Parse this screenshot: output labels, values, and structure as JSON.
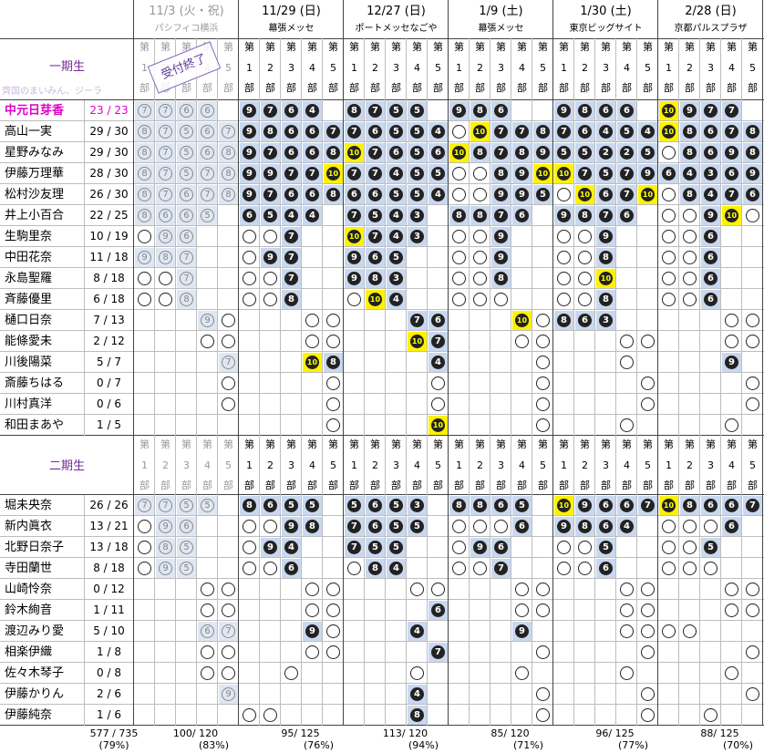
{
  "groups": [
    "一期生",
    "二期生"
  ],
  "part_label": "第",
  "part_numbers": [
    "1",
    "2",
    "3",
    "4",
    "5"
  ],
  "part_suffix": "部",
  "watermark": "齊国のまいみん、ジーラ",
  "stamp": "受付終了",
  "events": [
    {
      "date": "11/3 (火・祝)",
      "venue": "パシフィコ横浜",
      "closed": true,
      "footer": "100/ 120",
      "footer_pct": "(83%)"
    },
    {
      "date": "11/29 (日)",
      "venue": "幕張メッセ",
      "closed": false,
      "footer": "95/ 125",
      "footer_pct": "(76%)"
    },
    {
      "date": "12/27 (日)",
      "venue": "ポートメッセなごや",
      "closed": false,
      "footer": "113/ 120",
      "footer_pct": "(94%)"
    },
    {
      "date": "1/9 (土)",
      "venue": "幕張メッセ",
      "closed": false,
      "footer": "85/ 120",
      "footer_pct": "(71%)"
    },
    {
      "date": "1/30 (土)",
      "venue": "東京ビッグサイト",
      "closed": false,
      "footer": "96/ 125",
      "footer_pct": "(77%)"
    },
    {
      "date": "2/28 (日)",
      "venue": "京都パルスプラザ",
      "closed": false,
      "footer": "88/ 125",
      "footer_pct": "(70%)"
    }
  ],
  "total": {
    "value": "577 / 735",
    "pct": "(79%)"
  },
  "legend_note": "cells: number = remaining slots shown in circled digit; o = empty circle; x = blank",
  "members_gen1": [
    {
      "name": "中元日芽香",
      "ratio": "23 / 23",
      "highlight": true,
      "cells": [
        "7",
        "7",
        "6",
        "6",
        "",
        "9",
        "7",
        "6",
        "4",
        "",
        "8",
        "7",
        "5",
        "5",
        "",
        "9",
        "8",
        "6",
        "",
        "",
        "9",
        "8",
        "6",
        "6",
        "",
        "10",
        "9",
        "7",
        "7",
        ""
      ]
    },
    {
      "name": "高山一実",
      "ratio": "29 / 30",
      "cells": [
        "8",
        "7",
        "5",
        "6",
        "7",
        "9",
        "8",
        "6",
        "6",
        "7",
        "7",
        "6",
        "5",
        "5",
        "4",
        "o",
        "10",
        "7",
        "7",
        "8",
        "7",
        "6",
        "4",
        "5",
        "4",
        "10",
        "8",
        "6",
        "7",
        "8"
      ]
    },
    {
      "name": "星野みなみ",
      "ratio": "29 / 30",
      "cells": [
        "8",
        "7",
        "5",
        "6",
        "8",
        "9",
        "7",
        "6",
        "6",
        "8",
        "10",
        "7",
        "6",
        "5",
        "6",
        "10",
        "8",
        "7",
        "8",
        "9",
        "5",
        "5",
        "2",
        "2",
        "5",
        "o",
        "8",
        "6",
        "9",
        "8"
      ]
    },
    {
      "name": "伊藤万理華",
      "ratio": "28 / 30",
      "cells": [
        "8",
        "7",
        "5",
        "7",
        "8",
        "9",
        "9",
        "7",
        "7",
        "10",
        "7",
        "7",
        "4",
        "5",
        "5",
        "o",
        "o",
        "8",
        "9",
        "10",
        "10",
        "7",
        "5",
        "7",
        "9",
        "6",
        "4",
        "3",
        "6",
        "9"
      ]
    },
    {
      "name": "松村沙友理",
      "ratio": "26 / 30",
      "cells": [
        "8",
        "7",
        "6",
        "7",
        "8",
        "9",
        "7",
        "6",
        "6",
        "8",
        "6",
        "6",
        "5",
        "5",
        "4",
        "o",
        "o",
        "9",
        "9",
        "5",
        "o",
        "10",
        "6",
        "7",
        "10",
        "o",
        "8",
        "4",
        "7",
        "6"
      ]
    },
    {
      "name": "井上小百合",
      "ratio": "22 / 25",
      "cells": [
        "8",
        "6",
        "6",
        "5",
        "",
        "6",
        "5",
        "4",
        "4",
        "",
        "7",
        "5",
        "4",
        "3",
        "",
        "8",
        "8",
        "7",
        "6",
        "",
        "9",
        "8",
        "7",
        "6",
        "",
        "o",
        "o",
        "9",
        "10",
        "o"
      ]
    },
    {
      "name": "生駒里奈",
      "ratio": "10 / 19",
      "cells": [
        "o",
        "9",
        "6",
        "",
        "",
        "o",
        "o",
        "7",
        "",
        "",
        "10",
        "7",
        "4",
        "3",
        "",
        "o",
        "o",
        "9",
        "",
        "",
        "o",
        "o",
        "9",
        "",
        "",
        "o",
        "o",
        "6",
        "",
        ""
      ]
    },
    {
      "name": "中田花奈",
      "ratio": "11 / 18",
      "cells": [
        "9",
        "8",
        "7",
        "",
        "",
        "o",
        "9",
        "7",
        "",
        "",
        "9",
        "6",
        "5",
        "",
        "",
        "o",
        "o",
        "9",
        "",
        "",
        "o",
        "o",
        "8",
        "",
        "",
        "o",
        "o",
        "6",
        "",
        ""
      ]
    },
    {
      "name": "永島聖羅",
      "ratio": "8 / 18",
      "cells": [
        "o",
        "o",
        "7",
        "",
        "",
        "o",
        "o",
        "7",
        "",
        "",
        "9",
        "8",
        "3",
        "",
        "",
        "o",
        "o",
        "8",
        "",
        "",
        "o",
        "o",
        "10",
        "",
        "",
        "o",
        "o",
        "6",
        "",
        ""
      ]
    },
    {
      "name": "斉藤優里",
      "ratio": "6 / 18",
      "cells": [
        "o",
        "o",
        "8",
        "",
        "",
        "o",
        "o",
        "8",
        "",
        "",
        "o",
        "10",
        "4",
        "",
        "",
        "o",
        "o",
        "o",
        "",
        "",
        "o",
        "o",
        "8",
        "",
        "",
        "o",
        "o",
        "6",
        "",
        ""
      ]
    },
    {
      "name": "樋口日奈",
      "ratio": "7 / 13",
      "cells": [
        "",
        "",
        "",
        "9",
        "o",
        "",
        "",
        "",
        "o",
        "o",
        "",
        "",
        "",
        "7",
        "6",
        "",
        "",
        "",
        "10",
        "o",
        "8",
        "6",
        "3",
        "",
        "",
        "",
        "",
        "",
        "o",
        "o"
      ]
    },
    {
      "name": "能條愛未",
      "ratio": "2 / 12",
      "cells": [
        "",
        "",
        "",
        "o",
        "o",
        "",
        "",
        "",
        "o",
        "o",
        "",
        "",
        "",
        "10",
        "7",
        "",
        "",
        "",
        "o",
        "o",
        "",
        "",
        "",
        "o",
        "o",
        "",
        "",
        "",
        "o",
        "o"
      ]
    },
    {
      "name": "川後陽菜",
      "ratio": "5 / 7",
      "cells": [
        "",
        "",
        "",
        "",
        "7",
        "",
        "",
        "",
        "10",
        "8",
        "",
        "",
        "",
        "",
        "4",
        "",
        "",
        "",
        "",
        "o",
        "",
        "",
        "",
        "o",
        "",
        "",
        "",
        "",
        "9",
        ""
      ]
    },
    {
      "name": "斎藤ちはる",
      "ratio": "0 / 7",
      "cells": [
        "",
        "",
        "",
        "",
        "o",
        "",
        "",
        "",
        "",
        "o",
        "",
        "",
        "",
        "",
        "o",
        "",
        "",
        "",
        "",
        "o",
        "",
        "",
        "",
        "",
        "o",
        "",
        "",
        "",
        "",
        "o"
      ]
    },
    {
      "name": "川村真洋",
      "ratio": "0 / 6",
      "cells": [
        "",
        "",
        "",
        "",
        "o",
        "",
        "",
        "",
        "",
        "o",
        "",
        "",
        "",
        "",
        "o",
        "",
        "",
        "",
        "",
        "o",
        "",
        "",
        "",
        "",
        "o",
        "",
        "",
        "",
        "",
        "o"
      ]
    },
    {
      "name": "和田まあや",
      "ratio": "1 / 5",
      "cells": [
        "",
        "",
        "",
        "",
        "",
        "",
        "",
        "",
        "",
        "o",
        "",
        "",
        "",
        "",
        "10",
        "",
        "",
        "",
        "",
        "o",
        "",
        "",
        "",
        "o",
        "",
        "",
        "",
        "",
        "o",
        ""
      ]
    }
  ],
  "members_gen2": [
    {
      "name": "堀未央奈",
      "ratio": "26 / 26",
      "cells": [
        "7",
        "7",
        "5",
        "5",
        "",
        "8",
        "6",
        "5",
        "5",
        "",
        "5",
        "6",
        "5",
        "3",
        "",
        "8",
        "8",
        "6",
        "5",
        "",
        "10",
        "9",
        "6",
        "6",
        "7",
        "10",
        "8",
        "6",
        "6",
        "7"
      ]
    },
    {
      "name": "新内眞衣",
      "ratio": "13 / 21",
      "cells": [
        "o",
        "9",
        "6",
        "",
        "",
        "o",
        "o",
        "9",
        "8",
        "",
        "7",
        "6",
        "5",
        "5",
        "",
        "o",
        "o",
        "o",
        "6",
        "",
        "9",
        "8",
        "6",
        "4",
        "",
        "o",
        "o",
        "o",
        "6",
        ""
      ]
    },
    {
      "name": "北野日奈子",
      "ratio": "13 / 18",
      "cells": [
        "o",
        "8",
        "5",
        "",
        "",
        "o",
        "9",
        "4",
        "",
        "",
        "7",
        "5",
        "5",
        "",
        "",
        "o",
        "9",
        "6",
        "",
        "",
        "o",
        "o",
        "5",
        "",
        "",
        "o",
        "o",
        "5",
        "",
        ""
      ]
    },
    {
      "name": "寺田蘭世",
      "ratio": "8 / 18",
      "cells": [
        "o",
        "9",
        "5",
        "",
        "",
        "o",
        "o",
        "6",
        "",
        "",
        "o",
        "8",
        "4",
        "",
        "",
        "o",
        "o",
        "7",
        "",
        "",
        "o",
        "o",
        "6",
        "",
        "",
        "o",
        "o",
        "o",
        "",
        ""
      ]
    },
    {
      "name": "山崎怜奈",
      "ratio": "0 / 12",
      "cells": [
        "",
        "",
        "",
        "o",
        "o",
        "",
        "",
        "",
        "o",
        "o",
        "",
        "",
        "",
        "o",
        "o",
        "",
        "",
        "",
        "o",
        "o",
        "",
        "",
        "",
        "o",
        "o",
        "",
        "",
        "",
        "o",
        "o"
      ]
    },
    {
      "name": "鈴木絢音",
      "ratio": "1 / 11",
      "cells": [
        "",
        "",
        "",
        "o",
        "o",
        "",
        "",
        "",
        "o",
        "o",
        "",
        "",
        "",
        "",
        "6",
        "",
        "",
        "",
        "o",
        "o",
        "",
        "",
        "",
        "o",
        "o",
        "",
        "",
        "",
        "o",
        "o"
      ]
    },
    {
      "name": "渡辺みり愛",
      "ratio": "5 / 10",
      "cells": [
        "",
        "",
        "",
        "6",
        "7",
        "",
        "",
        "",
        "9",
        "o",
        "",
        "",
        "",
        "4",
        "",
        "",
        "",
        "",
        "9",
        "",
        "",
        "",
        "",
        "o",
        "o",
        "o",
        "o",
        "",
        "",
        ""
      ]
    },
    {
      "name": "相楽伊織",
      "ratio": "1 / 8",
      "cells": [
        "",
        "",
        "",
        "o",
        "o",
        "",
        "",
        "",
        "o",
        "o",
        "",
        "",
        "",
        "",
        "7",
        "",
        "",
        "",
        "",
        "o",
        "",
        "",
        "",
        "",
        "o",
        "",
        "",
        "",
        "",
        "o"
      ]
    },
    {
      "name": "佐々木琴子",
      "ratio": "0 / 8",
      "cells": [
        "",
        "",
        "",
        "o",
        "o",
        "",
        "",
        "o",
        "",
        "",
        "",
        "",
        "",
        "o",
        "",
        "",
        "",
        "",
        "o",
        "",
        "",
        "",
        "",
        "o",
        "",
        "",
        "",
        "",
        "o",
        ""
      ]
    },
    {
      "name": "伊藤かりん",
      "ratio": "2 / 6",
      "cells": [
        "",
        "",
        "",
        "",
        "9",
        "",
        "",
        "",
        "",
        "",
        "",
        "",
        "",
        "4",
        "",
        "",
        "",
        "",
        "",
        "o",
        "",
        "",
        "",
        "",
        "o",
        "",
        "",
        "",
        "",
        "o"
      ]
    },
    {
      "name": "伊藤純奈",
      "ratio": "1 / 6",
      "cells": [
        "",
        "",
        "",
        "",
        "",
        "o",
        "o",
        "",
        "",
        "",
        "",
        "",
        "",
        "8",
        "",
        "",
        "",
        "",
        "",
        "o",
        "",
        "",
        "",
        "",
        "o",
        "",
        "",
        "o",
        "",
        ""
      ]
    }
  ]
}
